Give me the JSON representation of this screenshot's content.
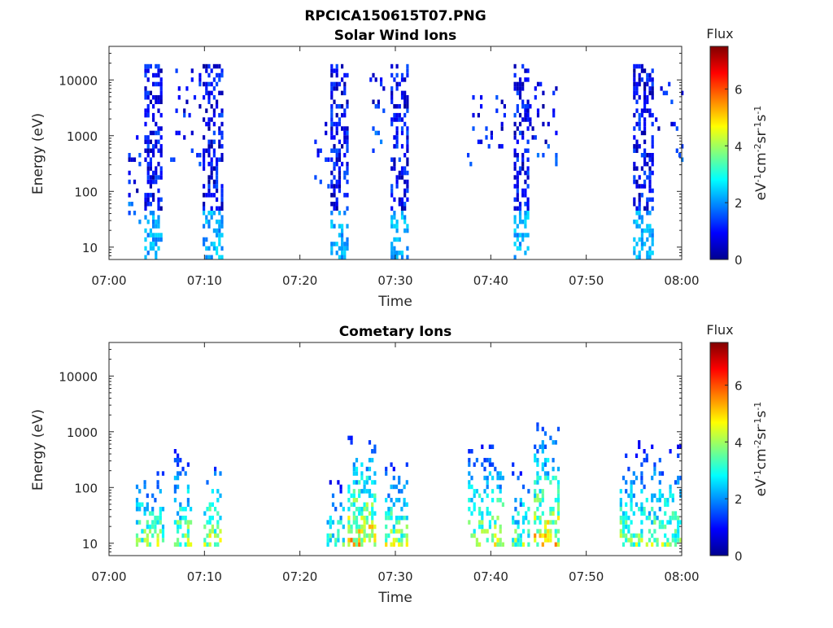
{
  "figure": {
    "title": "RPCICA150615T07.PNG",
    "colormap": "jet",
    "background": "#ffffff"
  },
  "chart_data": [
    {
      "type": "heatmap",
      "title": "Solar Wind Ions",
      "xlabel": "Time",
      "ylabel": "Energy (eV)",
      "x_range": [
        "07:00",
        "08:00"
      ],
      "x_ticks": [
        "07:00",
        "07:10",
        "07:20",
        "07:30",
        "07:40",
        "07:50",
        "08:00"
      ],
      "y_scale": "log",
      "ylim": [
        6,
        40000
      ],
      "y_ticks": [
        10,
        100,
        1000,
        10000
      ],
      "y_tick_labels": [
        "10",
        "100",
        "1000",
        "10000"
      ],
      "colorbar": {
        "title": "Flux",
        "label": "eV-1cm-2sr-1s-1",
        "range": [
          0,
          7.5
        ],
        "ticks": [
          "0",
          "2",
          "4",
          "6"
        ]
      },
      "bursts": [
        {
          "start_min": 3.7,
          "end_min": 5.6,
          "elow": 6,
          "ehigh": 20000,
          "peak": 2.2,
          "density": 0.55
        },
        {
          "start_min": 9.8,
          "end_min": 11.9,
          "elow": 6,
          "ehigh": 20000,
          "peak": 2.2,
          "density": 0.55
        },
        {
          "start_min": 23.2,
          "end_min": 25.1,
          "elow": 6,
          "ehigh": 20000,
          "peak": 2.2,
          "density": 0.55
        },
        {
          "start_min": 29.5,
          "end_min": 31.2,
          "elow": 6,
          "ehigh": 20000,
          "peak": 2.2,
          "density": 0.55
        },
        {
          "start_min": 42.4,
          "end_min": 43.9,
          "elow": 6,
          "ehigh": 20000,
          "peak": 2.2,
          "density": 0.55
        },
        {
          "start_min": 54.9,
          "end_min": 56.9,
          "elow": 6,
          "ehigh": 20000,
          "peak": 2.2,
          "density": 0.55
        },
        {
          "start_min": 2.0,
          "end_min": 3.2,
          "elow": 20,
          "ehigh": 2000,
          "peak": 1.8,
          "density": 0.12
        },
        {
          "start_min": 6.4,
          "end_min": 9.5,
          "elow": 300,
          "ehigh": 20000,
          "peak": 1.5,
          "density": 0.1
        },
        {
          "start_min": 21.5,
          "end_min": 23.0,
          "elow": 100,
          "ehigh": 2000,
          "peak": 1.6,
          "density": 0.1
        },
        {
          "start_min": 26.2,
          "end_min": 28.7,
          "elow": 500,
          "ehigh": 15000,
          "peak": 1.6,
          "density": 0.1
        },
        {
          "start_min": 37.5,
          "end_min": 41.5,
          "elow": 300,
          "ehigh": 5000,
          "peak": 1.6,
          "density": 0.12
        },
        {
          "start_min": 44.0,
          "end_min": 47.2,
          "elow": 300,
          "ehigh": 10000,
          "peak": 1.6,
          "density": 0.1
        },
        {
          "start_min": 57.2,
          "end_min": 60.0,
          "elow": 300,
          "ehigh": 10000,
          "peak": 1.6,
          "density": 0.12
        }
      ]
    },
    {
      "type": "heatmap",
      "title": "Cometary Ions",
      "xlabel": "Time",
      "ylabel": "Energy (eV)",
      "x_range": [
        "07:00",
        "08:00"
      ],
      "x_ticks": [
        "07:00",
        "07:10",
        "07:20",
        "07:30",
        "07:40",
        "07:50",
        "08:00"
      ],
      "y_scale": "log",
      "ylim": [
        6,
        40000
      ],
      "y_ticks": [
        10,
        100,
        1000,
        10000
      ],
      "y_tick_labels": [
        "10",
        "100",
        "1000",
        "10000"
      ],
      "colorbar": {
        "title": "Flux",
        "label": "eV-1cm-2sr-1s-1",
        "range": [
          0,
          7.5
        ],
        "ticks": [
          "0",
          "2",
          "4",
          "6"
        ]
      },
      "bursts": [
        {
          "start_min": 2.8,
          "end_min": 5.6,
          "elow": 8,
          "ehigh": 250,
          "peak": 5.0,
          "density": 0.55
        },
        {
          "start_min": 6.8,
          "end_min": 8.6,
          "elow": 8,
          "ehigh": 600,
          "peak": 5.0,
          "density": 0.55
        },
        {
          "start_min": 9.9,
          "end_min": 11.6,
          "elow": 8,
          "ehigh": 300,
          "peak": 5.6,
          "density": 0.55
        },
        {
          "start_min": 22.8,
          "end_min": 24.6,
          "elow": 8,
          "ehigh": 150,
          "peak": 4.5,
          "density": 0.45
        },
        {
          "start_min": 25.0,
          "end_min": 27.8,
          "elow": 8,
          "ehigh": 800,
          "peak": 6.2,
          "density": 0.65
        },
        {
          "start_min": 28.9,
          "end_min": 31.1,
          "elow": 8,
          "ehigh": 300,
          "peak": 5.2,
          "density": 0.55
        },
        {
          "start_min": 37.6,
          "end_min": 41.2,
          "elow": 8,
          "ehigh": 700,
          "peak": 5.3,
          "density": 0.45
        },
        {
          "start_min": 42.2,
          "end_min": 44.0,
          "elow": 8,
          "ehigh": 300,
          "peak": 4.8,
          "density": 0.5
        },
        {
          "start_min": 44.5,
          "end_min": 47.2,
          "elow": 8,
          "ehigh": 1500,
          "peak": 6.0,
          "density": 0.55
        },
        {
          "start_min": 53.5,
          "end_min": 60.0,
          "elow": 8,
          "ehigh": 700,
          "peak": 4.8,
          "density": 0.45
        }
      ]
    }
  ]
}
